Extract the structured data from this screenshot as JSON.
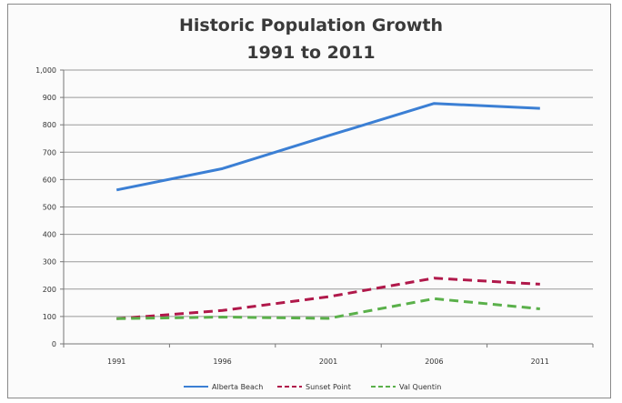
{
  "chart_data": {
    "type": "line",
    "title": "Historic Population Growth",
    "subtitle": "1991 to 2011",
    "xlabel": "",
    "ylabel": "",
    "categories": [
      "1991",
      "1996",
      "2001",
      "2006",
      "2011"
    ],
    "ylim": [
      0,
      1000
    ],
    "yticks": [
      "0",
      "100",
      "200",
      "300",
      "400",
      "500",
      "600",
      "700",
      "800",
      "900",
      "1,000"
    ],
    "grid": true,
    "legend_position": "bottom",
    "series": [
      {
        "name": "Alberta Beach",
        "values": [
          562,
          640,
          760,
          878,
          860
        ],
        "color": "#3b7fd4",
        "dash": "solid"
      },
      {
        "name": "Sunset Point",
        "values": [
          92,
          122,
          172,
          240,
          218
        ],
        "color": "#b0184a",
        "dash": "dashed"
      },
      {
        "name": "Val Quentin",
        "values": [
          92,
          98,
          93,
          165,
          128
        ],
        "color": "#5ab04a",
        "dash": "dashed"
      }
    ]
  }
}
